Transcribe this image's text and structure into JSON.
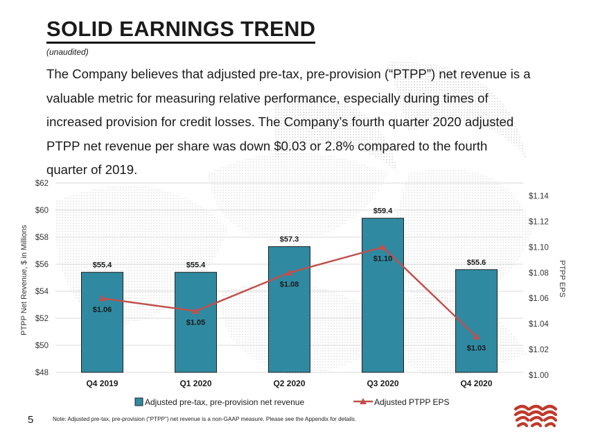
{
  "header": {
    "title": "SOLID EARNINGS TREND",
    "subtitle": "(unaudited)",
    "body": "The Company believes that adjusted pre-tax, pre-provision (“PTPP”) net revenue is a valuable metric for measuring relative performance, especially during times of increased provision for credit losses. The Company’s fourth quarter 2020 adjusted PTPP net revenue per share was down $0.03 or 2.8% compared to the fourth quarter of 2019."
  },
  "footer": {
    "page_number": "5",
    "note": "Note: Adjusted pre-tax, pre-provision (“PTPP”) net revenue is a non-GAAP measure. Please see the Appendix for details."
  },
  "colors": {
    "bar": "#2f8aa1",
    "line": "#c0504d",
    "grid": "#d9d9d9"
  },
  "chart_data": {
    "type": "bar",
    "categories": [
      "Q4 2019",
      "Q1 2020",
      "Q2 2020",
      "Q3 2020",
      "Q4 2020"
    ],
    "series": [
      {
        "name": "Adjusted pre-tax, pre-provision net revenue",
        "type": "bar",
        "axis": "left",
        "values": [
          55.4,
          55.4,
          57.3,
          59.4,
          55.6
        ],
        "labels": [
          "$55.4",
          "$55.4",
          "$57.3",
          "$59.4",
          "$55.6"
        ]
      },
      {
        "name": "Adjusted PTPP EPS",
        "type": "line",
        "axis": "right",
        "marker": "triangle",
        "values": [
          1.06,
          1.05,
          1.08,
          1.1,
          1.03
        ],
        "labels": [
          "$1.06",
          "$1.05",
          "$1.08",
          "$1.10",
          "$1.03"
        ]
      }
    ],
    "ylabel": "PTPP Net Revenue, $ in Millions",
    "y2label": "PTPP EPS",
    "ylim": [
      48,
      62
    ],
    "yticks": [
      48,
      50,
      52,
      54,
      56,
      58,
      60,
      62
    ],
    "ytick_labels": [
      "$48",
      "$50",
      "$52",
      "$54",
      "$56",
      "$58",
      "$60",
      "$62"
    ],
    "y2lim": [
      1.0,
      1.15
    ],
    "y2ticks": [
      1.0,
      1.02,
      1.04,
      1.06,
      1.08,
      1.1,
      1.12,
      1.14
    ],
    "y2tick_labels": [
      "$1.00",
      "$1.02",
      "$1.04",
      "$1.06",
      "$1.08",
      "$1.10",
      "$1.12",
      "$1.14"
    ],
    "grid": true,
    "legend": "bottom"
  }
}
